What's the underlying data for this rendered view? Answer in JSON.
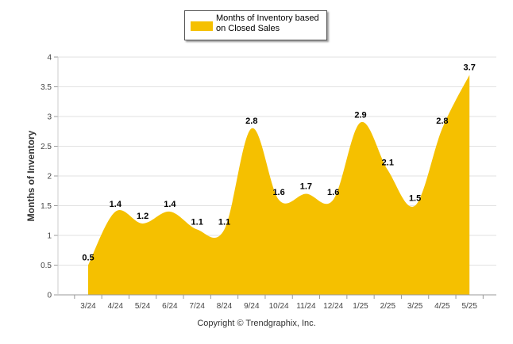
{
  "chart_data": {
    "type": "area",
    "categories": [
      "3/24",
      "4/24",
      "5/24",
      "6/24",
      "7/24",
      "8/24",
      "9/24",
      "10/24",
      "11/24",
      "12/24",
      "1/25",
      "2/25",
      "3/25",
      "4/25",
      "5/25"
    ],
    "series": [
      {
        "name": "Months of Inventory based on Closed Sales",
        "values": [
          0.5,
          1.4,
          1.2,
          1.4,
          1.1,
          1.1,
          2.8,
          1.6,
          1.7,
          1.6,
          2.9,
          2.1,
          1.5,
          2.8,
          3.7
        ]
      }
    ],
    "data_labels": [
      "0.5",
      "1.4",
      "1.2",
      "1.4",
      "1.1",
      "1.1",
      "2.8",
      "1.6",
      "1.7",
      "1.6",
      "2.9",
      "2.1",
      "1.5",
      "2.8",
      "3.7"
    ],
    "ylabel": "Months of Inventory",
    "xlabel": "",
    "ylim": [
      0,
      4
    ],
    "yticks": [
      "0",
      "0.5",
      "1",
      "1.5",
      "2",
      "2.5",
      "3",
      "3.5",
      "4"
    ],
    "grid": true,
    "legend_position": "top-center",
    "color": "#f5c000"
  },
  "legend": {
    "label": "Months of Inventory based on Closed Sales"
  },
  "footer": {
    "copyright": "Copyright © Trendgraphix, Inc."
  }
}
